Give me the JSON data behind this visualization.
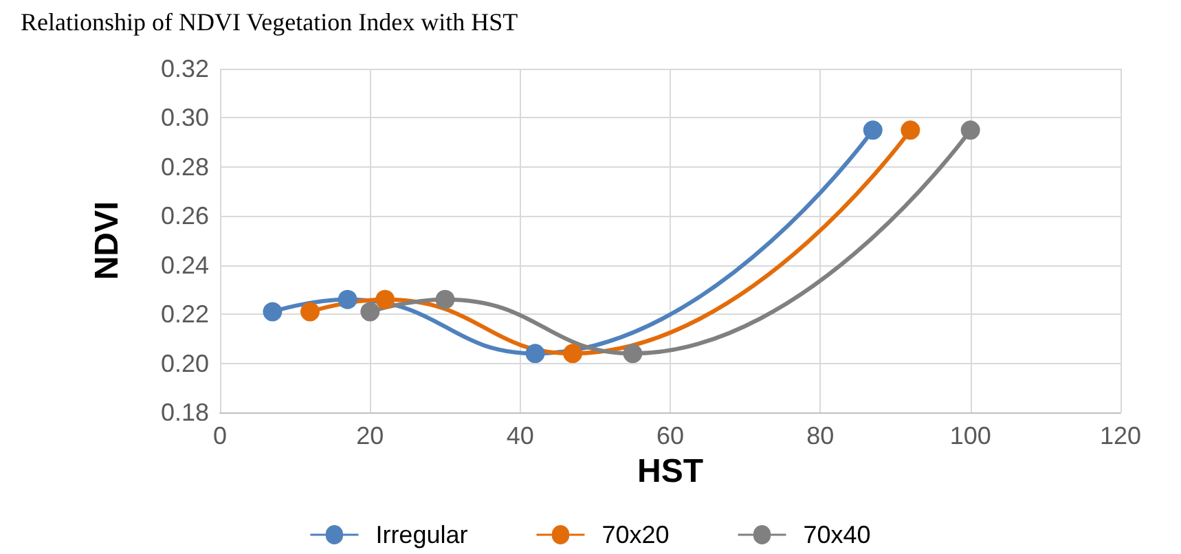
{
  "chart_data": {
    "type": "line",
    "title": "Relationship of NDVI Vegetation Index with HST",
    "xlabel": "HST",
    "ylabel": "NDVI",
    "xlim": [
      0,
      120
    ],
    "xticks": [
      0,
      20,
      40,
      60,
      80,
      100,
      120
    ],
    "ylim": [
      0.18,
      0.32
    ],
    "yticks": [
      {
        "value": 0.18,
        "label": "0.18"
      },
      {
        "value": 0.2,
        "label": "0.20"
      },
      {
        "value": 0.22,
        "label": "0.22"
      },
      {
        "value": 0.24,
        "label": "0.24"
      },
      {
        "value": 0.26,
        "label": "0.26"
      },
      {
        "value": 0.28,
        "label": "0.28"
      },
      {
        "value": 0.3,
        "label": "0.30"
      },
      {
        "value": 0.32,
        "label": "0.32"
      }
    ],
    "grid": true,
    "legend": "bottom",
    "marker": "circle",
    "line_style": "solid",
    "series": [
      {
        "name": "Irregular",
        "color": "#4f81bd",
        "x": [
          7,
          17,
          42,
          87
        ],
        "values": [
          0.221,
          0.226,
          0.204,
          0.295
        ]
      },
      {
        "name": "70x20",
        "color": "#e36c0a",
        "x": [
          12,
          22,
          47,
          92
        ],
        "values": [
          0.221,
          0.226,
          0.204,
          0.295
        ]
      },
      {
        "name": "70x40",
        "color": "#808080",
        "x": [
          20,
          30,
          55,
          100
        ],
        "values": [
          0.221,
          0.226,
          0.204,
          0.295
        ]
      }
    ]
  }
}
